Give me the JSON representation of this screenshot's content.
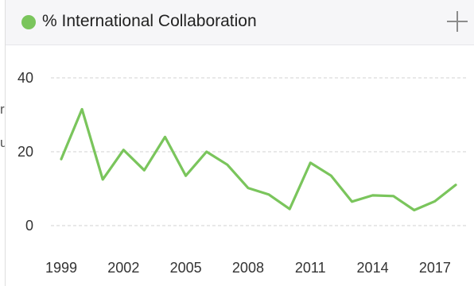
{
  "card": {
    "title": "% International Collaboration",
    "expand_icon": "plus-icon",
    "edge_fragments": [
      "r",
      "u"
    ]
  },
  "colors": {
    "series": "#7ac55c",
    "grid": "#d0d0d0",
    "header_bg": "#f6f6f8"
  },
  "chart_data": {
    "type": "line",
    "title": "% International Collaboration",
    "xlabel": "",
    "ylabel": "",
    "x": [
      1999,
      2000,
      2001,
      2002,
      2003,
      2004,
      2005,
      2006,
      2007,
      2008,
      2009,
      2010,
      2011,
      2012,
      2013,
      2014,
      2015,
      2016,
      2017,
      2018
    ],
    "x_ticks": [
      "1999",
      "2002",
      "2005",
      "2008",
      "2011",
      "2014",
      "2017"
    ],
    "series": [
      {
        "name": "% International Collaboration",
        "values": [
          18,
          31.5,
          12.5,
          20.5,
          15,
          24,
          13.5,
          20,
          16.5,
          10.2,
          8.4,
          4.5,
          17,
          13.5,
          6.5,
          8.2,
          8,
          4.2,
          6.6,
          11
        ]
      }
    ],
    "ylim": [
      0,
      40
    ],
    "y_ticks": [
      0,
      20,
      40
    ],
    "grid": true,
    "legend": "top-left"
  }
}
